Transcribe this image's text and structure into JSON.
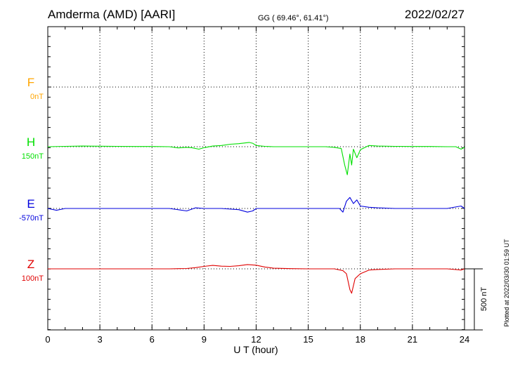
{
  "header": {
    "station": "Amderma (AMD)  [AARI]",
    "coords": "GG ( 69.46°,  61.41°)",
    "date": "2022/02/27"
  },
  "side_note": "Plotted at 2022/03/30 01:59 UT",
  "scale_label": "500 nT",
  "chart_data": {
    "type": "line",
    "title": "Amderma (AMD)  [AARI]",
    "xlabel": "U T (hour)",
    "ylabel": "",
    "xlim": [
      0,
      24
    ],
    "x_ticks": [
      "0",
      "3",
      "6",
      "9",
      "12",
      "15",
      "18",
      "21",
      "24"
    ],
    "grid": true,
    "series": [
      {
        "name": "F",
        "baseline_label": "0nT",
        "color": "#ffa500",
        "x": [],
        "y": []
      },
      {
        "name": "H",
        "baseline_label": "150nT",
        "color": "#00e000",
        "x": [
          0,
          1,
          2,
          3,
          4,
          5,
          6,
          7,
          7.5,
          8,
          8.3,
          8.7,
          9,
          9.5,
          10,
          10.5,
          11,
          11.3,
          11.6,
          11.8,
          12,
          12.5,
          13,
          14,
          15,
          16,
          16.5,
          16.9,
          17.1,
          17.25,
          17.4,
          17.5,
          17.6,
          17.8,
          18,
          18.5,
          19,
          20,
          21,
          22,
          23,
          23.5,
          23.8,
          24
        ],
        "y": [
          0,
          3,
          5,
          4,
          3,
          2,
          2,
          0,
          -10,
          -5,
          -8,
          -20,
          -8,
          5,
          10,
          20,
          25,
          30,
          35,
          28,
          10,
          3,
          0,
          0,
          0,
          0,
          -5,
          -15,
          -150,
          -230,
          -60,
          -150,
          -20,
          -90,
          -25,
          10,
          5,
          3,
          2,
          2,
          0,
          0,
          -20,
          -5
        ]
      },
      {
        "name": "E",
        "baseline_label": "-570nT",
        "color": "#0000dd",
        "x": [
          0,
          0.5,
          1,
          2,
          3,
          4,
          5,
          6,
          7,
          8,
          8.5,
          9,
          10,
          11,
          11.5,
          11.8,
          12,
          12.5,
          13,
          14,
          15,
          16,
          16.8,
          17,
          17.2,
          17.4,
          17.6,
          17.8,
          18,
          18.5,
          19,
          20,
          21,
          22,
          23,
          23.8,
          24
        ],
        "y": [
          0,
          -15,
          0,
          0,
          0,
          0,
          0,
          0,
          0,
          -20,
          5,
          0,
          0,
          -10,
          -30,
          -20,
          0,
          0,
          0,
          0,
          0,
          0,
          0,
          -30,
          60,
          90,
          40,
          70,
          20,
          10,
          5,
          0,
          0,
          0,
          0,
          20,
          0
        ]
      },
      {
        "name": "Z",
        "baseline_label": "100nT",
        "color": "#e00000",
        "x": [
          0,
          1,
          2,
          3,
          4,
          5,
          6,
          7,
          8,
          8.5,
          9,
          9.5,
          10,
          10.5,
          11,
          11.5,
          12,
          12.5,
          13,
          14,
          15,
          16,
          16.5,
          17,
          17.2,
          17.4,
          17.5,
          17.7,
          18,
          18.5,
          19,
          20,
          21,
          22,
          23,
          23.8,
          24
        ],
        "y": [
          0,
          0,
          0,
          0,
          0,
          0,
          0,
          0,
          3,
          10,
          20,
          28,
          22,
          20,
          25,
          35,
          30,
          15,
          5,
          2,
          0,
          0,
          0,
          -15,
          -40,
          -170,
          -200,
          -80,
          -40,
          -10,
          -5,
          0,
          0,
          0,
          0,
          -10,
          0
        ]
      }
    ]
  }
}
